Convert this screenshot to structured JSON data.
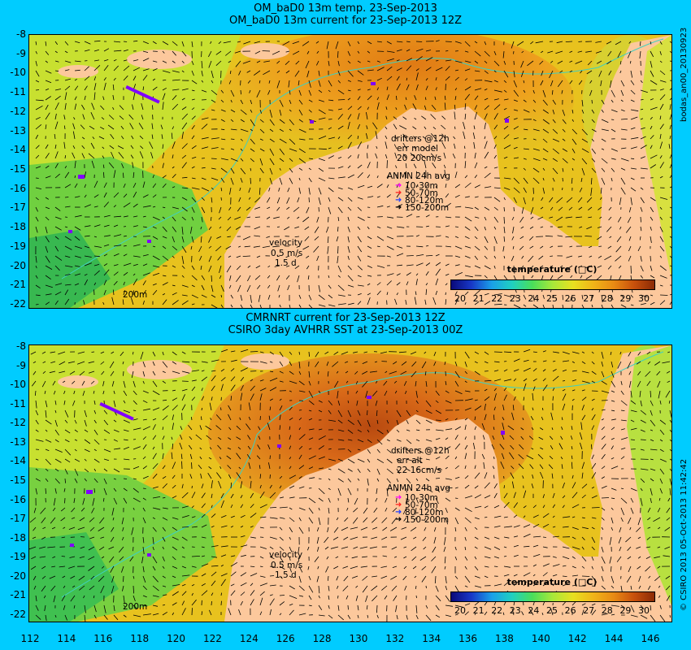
{
  "top": {
    "title1": "OM_baD0 13m temp. 23-Sep-2013",
    "title2": "OM_baD0 13m current for 23-Sep-2013 12Z",
    "drifters": [
      "drifters @12h",
      "err model",
      "20 20cm/s"
    ],
    "velocity": [
      "velocity",
      "0.5 m/s",
      "1.5 d"
    ],
    "side_label": "bodas_an00_20130923"
  },
  "bottom": {
    "title1": "CMRNRT current for 23-Sep-2013 12Z",
    "title2": "CSIRO 3day AVHRR SST at 23-Sep-2013 00Z",
    "drifters": [
      "drifters @12h",
      "err alt",
      "22 16cm/s"
    ],
    "velocity": [
      "velocity",
      "0.5 m/s",
      "1.5 d"
    ],
    "side_label": "© CSIRO 2013  05-Oct-2013 11:42:42"
  },
  "common": {
    "anmn_title": "ANMN 24h avg",
    "anmn_items": [
      {
        "label": "10-30m",
        "color": "#ff00ff"
      },
      {
        "label": "50-70m",
        "color": "#ff2020"
      },
      {
        "label": "80-120m",
        "color": "#2040ff"
      },
      {
        "label": "150-200m",
        "color": "#000000"
      }
    ],
    "isobath_label": "200m",
    "colorbar_title": "temperature (□C)",
    "colorbar_ticks": [
      "20",
      "21",
      "22",
      "23",
      "24",
      "25",
      "26",
      "27",
      "28",
      "29",
      "30"
    ],
    "colors": {
      "land": "#fcc89c",
      "background": "#00ccff",
      "isobath": "#40d0c0",
      "drifter": "#8000ff"
    }
  },
  "axes": {
    "y_ticks": [
      "-8",
      "-9",
      "-10",
      "-11",
      "-12",
      "-13",
      "-14",
      "-15",
      "-16",
      "-17",
      "-18",
      "-19",
      "-20",
      "-21",
      "-22"
    ],
    "x_ticks": [
      "112",
      "114",
      "116",
      "118",
      "120",
      "122",
      "124",
      "126",
      "128",
      "130",
      "132",
      "134",
      "136",
      "138",
      "140",
      "142",
      "144",
      "146"
    ]
  }
}
